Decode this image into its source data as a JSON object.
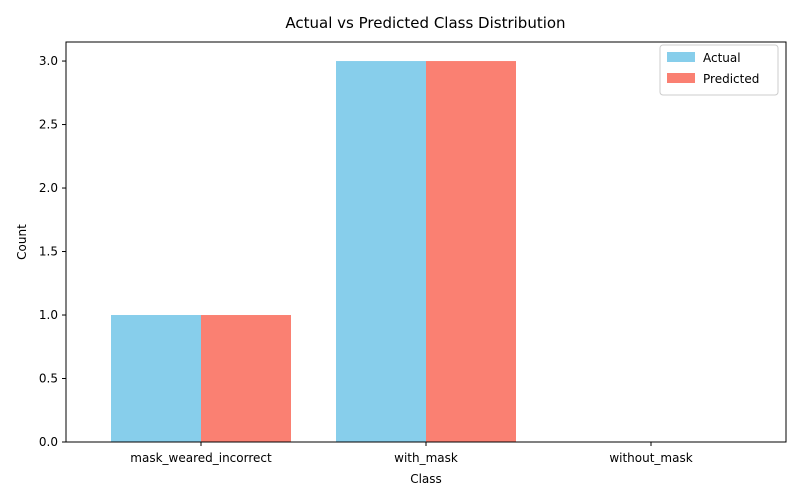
{
  "chart_data": {
    "type": "bar",
    "title": "Actual vs Predicted Class Distribution",
    "xlabel": "Class",
    "ylabel": "Count",
    "categories": [
      "mask_weared_incorrect",
      "with_mask",
      "without_mask"
    ],
    "series": [
      {
        "name": "Actual",
        "values": [
          1,
          3,
          0
        ],
        "color": "#87ceeb"
      },
      {
        "name": "Predicted",
        "values": [
          1,
          3,
          0
        ],
        "color": "#fa8072"
      }
    ],
    "ylim": [
      0,
      3.15
    ],
    "yticks": [
      0.0,
      0.5,
      1.0,
      1.5,
      2.0,
      2.5,
      3.0
    ],
    "ytick_labels": [
      "0.0",
      "0.5",
      "1.0",
      "1.5",
      "2.0",
      "2.5",
      "3.0"
    ],
    "grid": false,
    "legend_position": "top-right"
  }
}
